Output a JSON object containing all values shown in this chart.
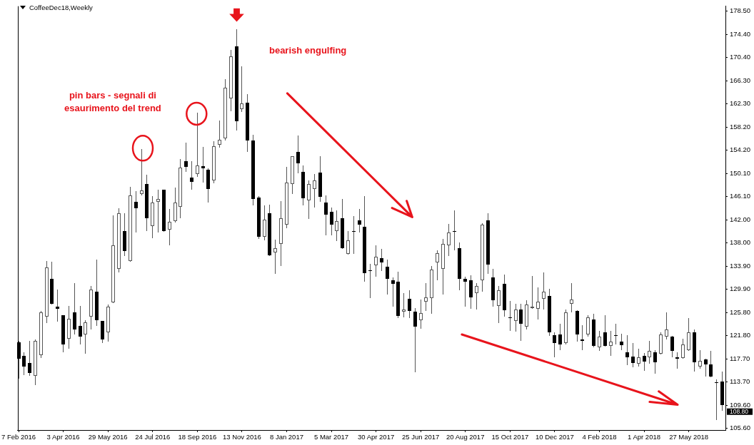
{
  "chart_data": {
    "type": "candlestick",
    "title": "CoffeeDec18,Weekly",
    "x": [
      "2016-02-07",
      "2016-02-14",
      "2016-02-21",
      "2016-02-28",
      "2016-03-06",
      "2016-03-13",
      "2016-03-20",
      "2016-03-27",
      "2016-04-03",
      "2016-04-10",
      "2016-04-17",
      "2016-04-24",
      "2016-05-01",
      "2016-05-08",
      "2016-05-15",
      "2016-05-22",
      "2016-05-29",
      "2016-06-05",
      "2016-06-12",
      "2016-06-19",
      "2016-06-26",
      "2016-07-03",
      "2016-07-10",
      "2016-07-17",
      "2016-07-24",
      "2016-07-31",
      "2016-08-07",
      "2016-08-14",
      "2016-08-21",
      "2016-08-28",
      "2016-09-04",
      "2016-09-11",
      "2016-09-18",
      "2016-09-25",
      "2016-10-02",
      "2016-10-09",
      "2016-10-16",
      "2016-10-23",
      "2016-10-30",
      "2016-11-06",
      "2016-11-13",
      "2016-11-20",
      "2016-11-27",
      "2016-12-04",
      "2016-12-11",
      "2016-12-18",
      "2016-12-25",
      "2017-01-01",
      "2017-01-08",
      "2017-01-15",
      "2017-01-22",
      "2017-01-29",
      "2017-02-05",
      "2017-02-12",
      "2017-02-19",
      "2017-02-26",
      "2017-03-05",
      "2017-03-12",
      "2017-03-19",
      "2017-03-26",
      "2017-04-02",
      "2017-04-09",
      "2017-04-16",
      "2017-04-23",
      "2017-04-30",
      "2017-05-07",
      "2017-05-14",
      "2017-05-21",
      "2017-05-28",
      "2017-06-04",
      "2017-06-11",
      "2017-06-18",
      "2017-06-25",
      "2017-07-02",
      "2017-07-09",
      "2017-07-16",
      "2017-07-23",
      "2017-07-30",
      "2017-08-06",
      "2017-08-13",
      "2017-08-20",
      "2017-08-27",
      "2017-09-03",
      "2017-09-10",
      "2017-09-17",
      "2017-09-24",
      "2017-10-01",
      "2017-10-08",
      "2017-10-15",
      "2017-10-22",
      "2017-10-29",
      "2017-11-05",
      "2017-11-12",
      "2017-11-19",
      "2017-11-26",
      "2017-12-03",
      "2017-12-10",
      "2017-12-17",
      "2017-12-24",
      "2017-12-31",
      "2018-01-07",
      "2018-01-14",
      "2018-01-21",
      "2018-01-28",
      "2018-02-04",
      "2018-02-11",
      "2018-02-18",
      "2018-02-25",
      "2018-03-04",
      "2018-03-11",
      "2018-03-18",
      "2018-03-25",
      "2018-04-01",
      "2018-04-08",
      "2018-04-15",
      "2018-04-22",
      "2018-04-29",
      "2018-05-06",
      "2018-05-13",
      "2018-05-20",
      "2018-05-27",
      "2018-06-03",
      "2018-06-10",
      "2018-06-17",
      "2018-06-24",
      "2018-07-01",
      "2018-07-08"
    ],
    "ohlc": [
      [
        120.6,
        120.9,
        114.3,
        117.7
      ],
      [
        118.2,
        118.9,
        114.9,
        116.4
      ],
      [
        117.0,
        120.9,
        114.8,
        115.2
      ],
      [
        114.8,
        121.1,
        113.2,
        120.9
      ],
      [
        118.4,
        126.1,
        117.9,
        125.8
      ],
      [
        125.1,
        134.8,
        124.0,
        133.7
      ],
      [
        131.7,
        134.7,
        127.2,
        127.4
      ],
      [
        126.8,
        129.8,
        124.2,
        126.5
      ],
      [
        125.4,
        125.4,
        118.9,
        120.2
      ],
      [
        121.2,
        127.0,
        119.5,
        124.7
      ],
      [
        125.8,
        131.0,
        122.0,
        122.9
      ],
      [
        123.5,
        127.0,
        120.2,
        121.6
      ],
      [
        122.0,
        124.5,
        118.6,
        124.1
      ],
      [
        125.1,
        130.4,
        122.9,
        129.8
      ],
      [
        129.5,
        135.1,
        123.5,
        124.5
      ],
      [
        124.4,
        124.4,
        120.5,
        121.1
      ],
      [
        122.3,
        127.2,
        120.7,
        126.8
      ],
      [
        127.6,
        142.8,
        127.5,
        137.5
      ],
      [
        133.4,
        144.0,
        132.8,
        143.2
      ],
      [
        140.1,
        143.1,
        135.7,
        136.5
      ],
      [
        134.8,
        147.8,
        134.7,
        146.3
      ],
      [
        145.2,
        147.0,
        139.8,
        144.0
      ],
      [
        146.5,
        154.4,
        146.3,
        147.1
      ],
      [
        148.2,
        149.9,
        140.1,
        142.3
      ],
      [
        140.9,
        146.1,
        138.8,
        145.0
      ],
      [
        145.1,
        147.2,
        139.8,
        145.7
      ],
      [
        147.2,
        147.3,
        139.9,
        140.1
      ],
      [
        140.3,
        143.9,
        137.6,
        141.6
      ],
      [
        141.8,
        147.6,
        141.5,
        145.0
      ],
      [
        144.3,
        152.6,
        142.3,
        151.1
      ],
      [
        152.2,
        155.5,
        150.4,
        151.3
      ],
      [
        149.4,
        152.2,
        147.2,
        148.6
      ],
      [
        150.0,
        160.7,
        149.5,
        151.5
      ],
      [
        151.4,
        154.7,
        148.5,
        151.0
      ],
      [
        150.8,
        151.0,
        145.0,
        147.4
      ],
      [
        148.9,
        155.7,
        148.4,
        154.8
      ],
      [
        155.1,
        159.4,
        154.6,
        156.0
      ],
      [
        156.2,
        166.6,
        155.9,
        165.1
      ],
      [
        163.2,
        171.7,
        160.9,
        170.6
      ],
      [
        172.3,
        175.3,
        157.6,
        159.2
      ],
      [
        161.3,
        168.8,
        160.8,
        162.3
      ],
      [
        162.5,
        163.9,
        153.9,
        155.8
      ],
      [
        155.9,
        156.9,
        144.5,
        145.6
      ],
      [
        145.9,
        146.1,
        138.7,
        139.0
      ],
      [
        139.0,
        144.5,
        138.4,
        142.0
      ],
      [
        143.1,
        144.7,
        135.7,
        135.8
      ],
      [
        136.3,
        138.5,
        132.6,
        137.1
      ],
      [
        137.8,
        145.3,
        134.0,
        142.3
      ],
      [
        141.1,
        151.2,
        140.6,
        148.5
      ],
      [
        148.3,
        153.1,
        146.5,
        153.1
      ],
      [
        153.8,
        156.7,
        150.1,
        151.9
      ],
      [
        150.4,
        151.5,
        144.5,
        145.8
      ],
      [
        145.4,
        148.9,
        142.2,
        148.2
      ],
      [
        147.4,
        150.0,
        144.2,
        148.9
      ],
      [
        150.3,
        153.1,
        145.2,
        146.0
      ],
      [
        145.0,
        146.3,
        139.3,
        142.9
      ],
      [
        143.4,
        144.1,
        139.3,
        141.2
      ],
      [
        140.1,
        143.7,
        138.3,
        141.8
      ],
      [
        142.3,
        145.6,
        136.9,
        137.1
      ],
      [
        136.0,
        140.1,
        135.9,
        138.4
      ],
      [
        140.0,
        142.6,
        136.0,
        139.9
      ],
      [
        141.9,
        143.9,
        139.8,
        141.1
      ],
      [
        140.8,
        146.1,
        131.2,
        132.7
      ],
      [
        133.2,
        134.3,
        128.3,
        133.1
      ],
      [
        134.1,
        137.5,
        132.1,
        135.5
      ],
      [
        135.3,
        136.9,
        133.1,
        134.6
      ],
      [
        133.8,
        135.1,
        129.0,
        131.7
      ],
      [
        131.5,
        132.0,
        126.9,
        130.8
      ],
      [
        131.2,
        132.9,
        124.9,
        125.2
      ],
      [
        126.0,
        129.2,
        125.0,
        126.3
      ],
      [
        128.2,
        129.7,
        124.9,
        126.1
      ],
      [
        126.0,
        126.6,
        115.4,
        123.3
      ],
      [
        124.5,
        128.1,
        123.0,
        125.7
      ],
      [
        127.7,
        131.0,
        126.1,
        128.5
      ],
      [
        128.3,
        133.9,
        125.6,
        133.3
      ],
      [
        134.6,
        136.7,
        131.5,
        136.2
      ],
      [
        133.5,
        138.7,
        129.0,
        137.8
      ],
      [
        137.6,
        141.3,
        135.7,
        139.8
      ],
      [
        140.0,
        143.6,
        136.7,
        139.9
      ],
      [
        137.1,
        138.1,
        129.7,
        131.7
      ],
      [
        131.7,
        132.1,
        126.8,
        131.2
      ],
      [
        131.5,
        132.3,
        126.5,
        128.5
      ],
      [
        129.2,
        130.9,
        126.4,
        130.4
      ],
      [
        131.4,
        141.4,
        129.4,
        141.1
      ],
      [
        141.9,
        143.1,
        132.6,
        134.2
      ],
      [
        131.9,
        133.5,
        126.9,
        127.9
      ],
      [
        127.0,
        130.4,
        124.0,
        129.7
      ],
      [
        130.8,
        132.5,
        125.1,
        126.2
      ],
      [
        125.0,
        127.8,
        122.6,
        124.9
      ],
      [
        124.4,
        127.4,
        122.5,
        126.3
      ],
      [
        126.3,
        127.4,
        120.9,
        123.9
      ],
      [
        123.4,
        127.9,
        122.9,
        127.2
      ],
      [
        126.6,
        132.2,
        126.5,
        126.8
      ],
      [
        126.5,
        130.2,
        124.6,
        127.7
      ],
      [
        128.2,
        132.8,
        126.4,
        129.5
      ],
      [
        128.7,
        129.9,
        121.7,
        122.4
      ],
      [
        121.9,
        122.3,
        118.0,
        120.5
      ],
      [
        122.0,
        123.8,
        119.2,
        120.2
      ],
      [
        120.5,
        126.4,
        120.3,
        125.9
      ],
      [
        127.4,
        131.0,
        125.9,
        128.1
      ],
      [
        126.1,
        126.2,
        120.7,
        122.0
      ],
      [
        121.1,
        123.6,
        119.3,
        120.9
      ],
      [
        122.0,
        125.3,
        121.6,
        125.0
      ],
      [
        124.6,
        125.6,
        119.8,
        120.0
      ],
      [
        119.7,
        122.6,
        119.1,
        121.6
      ],
      [
        122.3,
        125.4,
        119.9,
        120.0
      ],
      [
        120.0,
        122.6,
        118.2,
        120.7
      ],
      [
        121.9,
        123.8,
        120.2,
        121.8
      ],
      [
        120.8,
        122.1,
        119.3,
        120.1
      ],
      [
        118.9,
        121.8,
        116.6,
        118.0
      ],
      [
        118.1,
        120.5,
        116.2,
        117.0
      ],
      [
        116.9,
        119.5,
        116.4,
        118.0
      ],
      [
        118.2,
        118.7,
        115.6,
        117.3
      ],
      [
        118.0,
        120.9,
        116.9,
        119.1
      ],
      [
        118.9,
        119.2,
        115.1,
        117.1
      ],
      [
        118.6,
        122.3,
        118.5,
        122.0
      ],
      [
        121.6,
        125.8,
        121.1,
        122.8
      ],
      [
        121.6,
        121.7,
        118.0,
        119.1
      ],
      [
        118.0,
        118.9,
        116.0,
        117.8
      ],
      [
        117.9,
        121.3,
        117.8,
        120.3
      ],
      [
        119.3,
        124.8,
        119.1,
        122.3
      ],
      [
        122.4,
        122.9,
        115.5,
        117.1
      ],
      [
        116.4,
        119.3,
        116.0,
        117.4
      ],
      [
        117.6,
        117.8,
        114.6,
        116.7
      ],
      [
        116.7,
        119.1,
        114.5,
        114.7
      ],
      [
        113.6,
        114.2,
        107.0,
        113.5
      ],
      [
        113.8,
        115.5,
        108.7,
        109.7
      ]
    ],
    "xlim": [
      "2016-02-06",
      "2018-07-12"
    ],
    "xticks": [
      {
        "value": "2016-02-07",
        "label": "7 Feb 2016"
      },
      {
        "value": "2016-04-03",
        "label": "3 Apr 2016"
      },
      {
        "value": "2016-05-29",
        "label": "29 May 2016"
      },
      {
        "value": "2016-07-24",
        "label": "24 Jul 2016"
      },
      {
        "value": "2016-09-18",
        "label": "18 Sep 2016"
      },
      {
        "value": "2016-11-13",
        "label": "13 Nov 2016"
      },
      {
        "value": "2017-01-08",
        "label": "8 Jan 2017"
      },
      {
        "value": "2017-03-05",
        "label": "5 Mar 2017"
      },
      {
        "value": "2017-04-30",
        "label": "30 Apr 2017"
      },
      {
        "value": "2017-06-25",
        "label": "25 Jun 2017"
      },
      {
        "value": "2017-08-20",
        "label": "20 Aug 2017"
      },
      {
        "value": "2017-10-15",
        "label": "15 Oct 2017"
      },
      {
        "value": "2017-12-10",
        "label": "10 Dec 2017"
      },
      {
        "value": "2018-02-04",
        "label": "4 Feb 2018"
      },
      {
        "value": "2018-04-01",
        "label": "1 Apr 2018"
      },
      {
        "value": "2018-05-27",
        "label": "27 May 2018"
      }
    ],
    "ylim": [
      105.3,
      179.3
    ],
    "yticks": [
      {
        "value": 178.5,
        "label": "178.50"
      },
      {
        "value": 174.4,
        "label": "174.40"
      },
      {
        "value": 170.4,
        "label": "170.40"
      },
      {
        "value": 166.3,
        "label": "166.30"
      },
      {
        "value": 162.3,
        "label": "162.30"
      },
      {
        "value": 158.2,
        "label": "158.20"
      },
      {
        "value": 154.2,
        "label": "154.20"
      },
      {
        "value": 150.1,
        "label": "150.10"
      },
      {
        "value": 146.1,
        "label": "146.10"
      },
      {
        "value": 142.0,
        "label": "142.00"
      },
      {
        "value": 138.0,
        "label": "138.00"
      },
      {
        "value": 133.9,
        "label": "133.90"
      },
      {
        "value": 129.9,
        "label": "129.90"
      },
      {
        "value": 125.8,
        "label": "125.80"
      },
      {
        "value": 121.8,
        "label": "121.80"
      },
      {
        "value": 117.7,
        "label": "117.70"
      },
      {
        "value": 113.7,
        "label": "113.70"
      },
      {
        "value": 109.6,
        "label": "109.60"
      },
      {
        "value": 105.6,
        "label": "105.60"
      }
    ],
    "annotations": [
      "bearish engulfing",
      "pin bars - segnali di esaurimento del trend",
      "108.80"
    ]
  }
}
